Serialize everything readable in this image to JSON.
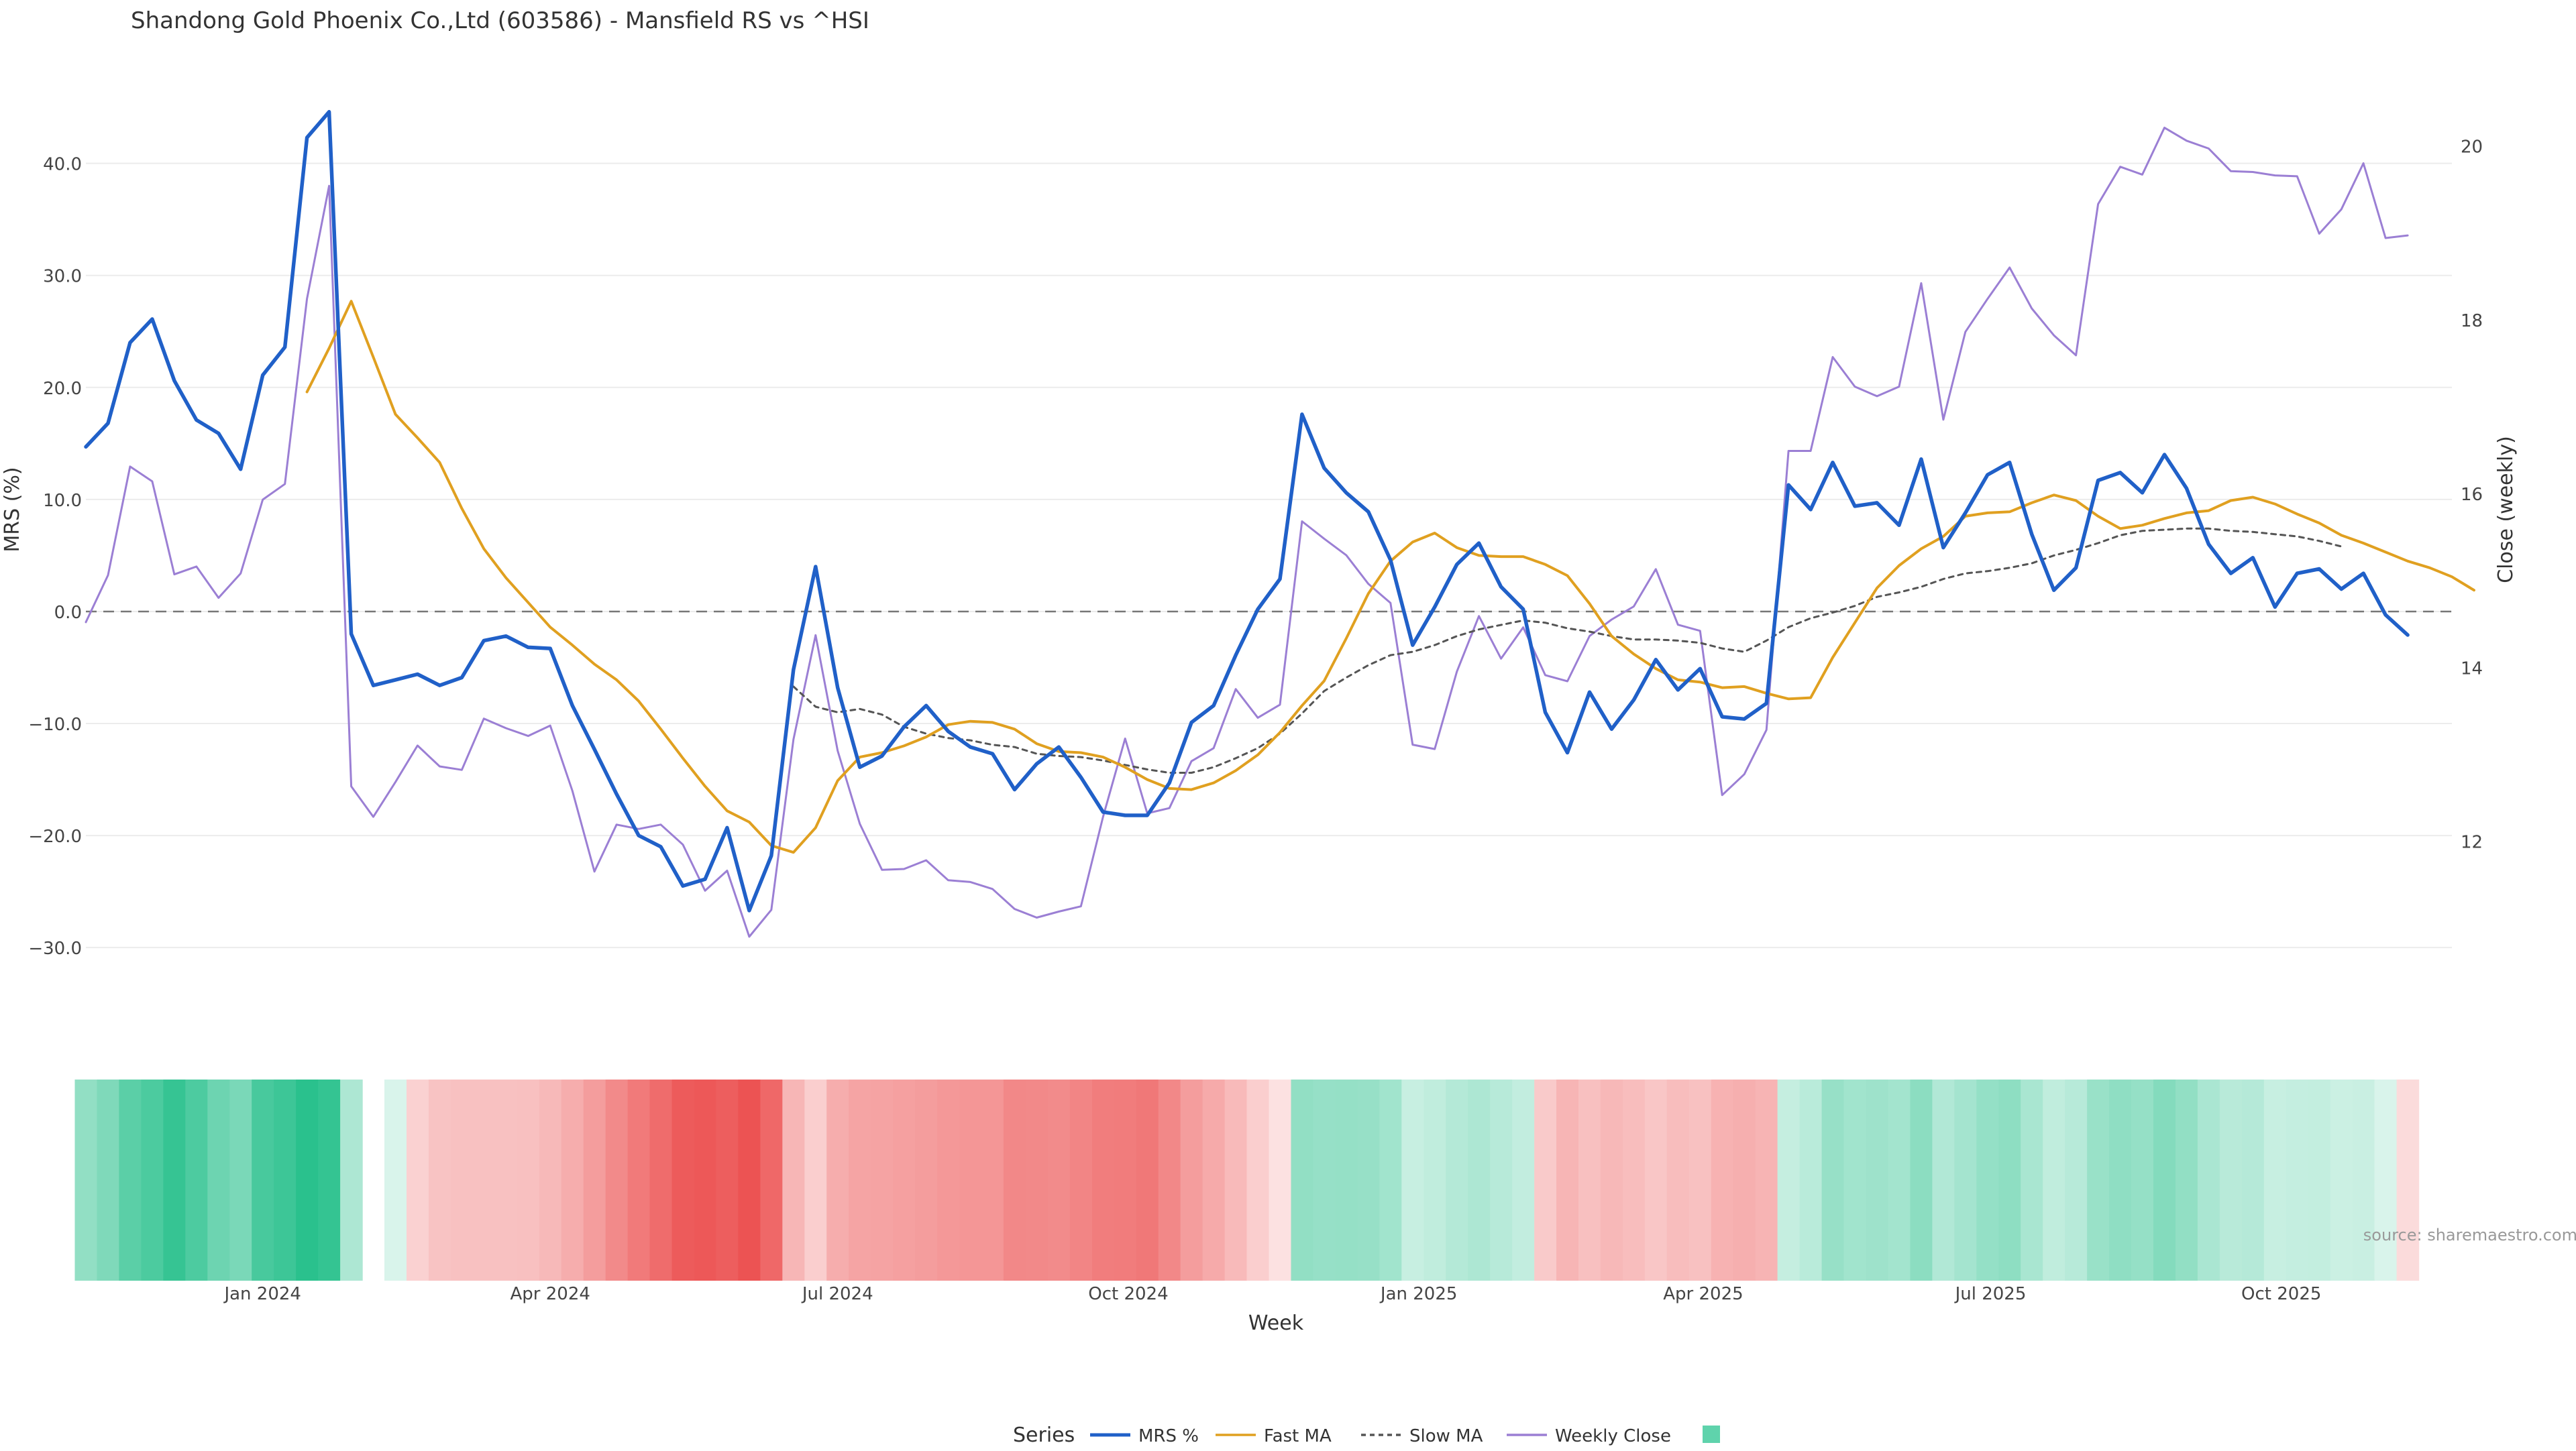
{
  "chart_data": {
    "type": "line",
    "title": "Shandong Gold Phoenix Co.,Ltd (603586) - Mansfield RS vs ^HSI",
    "xlabel": "Week",
    "ylabel_left": "MRS (%)",
    "ylabel_right": "Close (weekly)",
    "watermark": "source: sharemaestro.com",
    "left_axis": {
      "ylim": [
        -34,
        48
      ],
      "ticks": [
        40,
        30,
        20,
        10,
        0,
        -10,
        -20,
        -30
      ],
      "tick_labels": [
        "40.0",
        "30.0",
        "20.0",
        "10.0",
        "0.0",
        "−10.0",
        "−20.0",
        "−30.0"
      ]
    },
    "right_axis": {
      "ylim": [
        10.26,
        20.83
      ],
      "ticks": [
        12,
        14,
        16,
        18,
        20
      ],
      "tick_labels": [
        "12",
        "14",
        "16",
        "18",
        "20"
      ]
    },
    "x_range": [
      "2023-11-06",
      "2025-11-24"
    ],
    "x_ticks": [
      {
        "date": "2024-01-01",
        "label": "Jan 2024"
      },
      {
        "date": "2024-04-01",
        "label": "Apr 2024"
      },
      {
        "date": "2024-07-01",
        "label": "Jul 2024"
      },
      {
        "date": "2024-10-01",
        "label": "Oct 2024"
      },
      {
        "date": "2025-01-01",
        "label": "Jan 2025"
      },
      {
        "date": "2025-04-01",
        "label": "Apr 2025"
      },
      {
        "date": "2025-07-01",
        "label": "Jul 2025"
      },
      {
        "date": "2025-10-01",
        "label": "Oct 2025"
      }
    ],
    "zero_line": 0,
    "grid": true,
    "legend_title": "Series",
    "legend_position": "bottom-center",
    "series": [
      {
        "name": "MRS %",
        "color": "#2060c8",
        "axis": "left",
        "style": "solid",
        "start": "2023-11-06",
        "values": [
          14.7,
          16.8,
          24.0,
          26.1,
          20.6,
          17.1,
          15.9,
          12.7,
          21.1,
          23.6,
          42.3,
          44.6,
          -2.0,
          -6.6,
          -6.1,
          -5.6,
          -6.6,
          -5.9,
          -2.6,
          -2.2,
          -3.2,
          -3.3,
          -8.4,
          -12.3,
          -16.3,
          -20.0,
          -21.0,
          -24.5,
          -23.9,
          -19.3,
          -26.7,
          -21.8,
          -5.2,
          4.0,
          -6.8,
          -13.9,
          -12.9,
          -10.3,
          -8.4,
          -10.7,
          -12.1,
          -12.7,
          -15.9,
          -13.6,
          -12.1,
          -14.8,
          -17.9,
          -18.2,
          -18.2,
          -15.3,
          -9.9,
          -8.4,
          -3.9,
          0.2,
          2.9,
          17.6,
          12.8,
          10.6,
          8.9,
          4.6,
          -3.0,
          0.4,
          4.2,
          6.1,
          2.2,
          0.2,
          -9.0,
          -12.6,
          -7.2,
          -10.5,
          -7.9,
          -4.3,
          -7.0,
          -5.1,
          -9.4,
          -9.6,
          -8.2,
          11.3,
          9.1,
          13.3,
          9.4,
          9.7,
          7.7,
          13.6,
          5.7,
          8.8,
          12.2,
          13.3,
          6.9,
          1.9,
          3.9,
          11.7,
          12.4,
          10.6,
          14.0,
          11.0,
          6.0,
          3.4,
          4.8,
          0.4,
          3.4,
          3.8,
          2.0,
          3.4,
          -0.3,
          -2.1
        ]
      },
      {
        "name": "Fast MA",
        "color": "#e0a020",
        "axis": "left",
        "style": "solid",
        "start": "2024-01-15",
        "values": [
          19.6,
          23.5,
          27.7,
          22.7,
          17.6,
          15.5,
          13.3,
          9.2,
          5.6,
          3.0,
          0.8,
          -1.4,
          -3.0,
          -4.7,
          -6.1,
          -8.0,
          -10.5,
          -13.1,
          -15.6,
          -17.8,
          -18.8,
          -20.9,
          -21.5,
          -19.3,
          -15.1,
          -13.0,
          -12.6,
          -12.0,
          -11.2,
          -10.1,
          -9.8,
          -9.9,
          -10.5,
          -11.8,
          -12.5,
          -12.6,
          -13.0,
          -13.9,
          -15.0,
          -15.8,
          -15.9,
          -15.3,
          -14.2,
          -12.8,
          -10.8,
          -8.4,
          -6.2,
          -2.4,
          1.6,
          4.5,
          6.2,
          7.0,
          5.7,
          5.0,
          4.9,
          4.9,
          4.2,
          3.2,
          0.7,
          -2.2,
          -3.8,
          -5.1,
          -6.1,
          -6.3,
          -6.8,
          -6.7,
          -7.3,
          -7.8,
          -7.7,
          -4.1,
          -1.0,
          2.1,
          4.1,
          5.6,
          6.7,
          8.5,
          8.8,
          8.9,
          9.7,
          10.4,
          9.9,
          8.5,
          7.4,
          7.7,
          8.3,
          8.8,
          9.0,
          9.9,
          10.2,
          9.6,
          8.7,
          7.9,
          6.8,
          6.1,
          5.3,
          4.5,
          3.9,
          3.1,
          1.9
        ]
      },
      {
        "name": "Slow MA",
        "color": "#555555",
        "axis": "left",
        "style": "dashed",
        "start": "2024-06-17",
        "values": [
          -6.7,
          -8.5,
          -9.0,
          -8.7,
          -9.2,
          -10.3,
          -10.9,
          -11.3,
          -11.5,
          -11.9,
          -12.1,
          -12.7,
          -12.9,
          -13.0,
          -13.3,
          -13.7,
          -14.1,
          -14.4,
          -14.4,
          -13.9,
          -13.1,
          -12.2,
          -10.9,
          -9.1,
          -7.1,
          -5.9,
          -4.8,
          -3.9,
          -3.6,
          -3.0,
          -2.2,
          -1.6,
          -1.2,
          -0.8,
          -1.0,
          -1.5,
          -1.8,
          -2.2,
          -2.5,
          -2.5,
          -2.6,
          -2.8,
          -3.3,
          -3.6,
          -2.6,
          -1.4,
          -0.6,
          -0.1,
          0.5,
          1.3,
          1.7,
          2.2,
          2.9,
          3.4,
          3.6,
          3.9,
          4.3,
          5.0,
          5.5,
          6.1,
          6.8,
          7.2,
          7.3,
          7.4,
          7.4,
          7.2,
          7.1,
          6.9,
          6.7,
          6.3,
          5.8
        ]
      },
      {
        "name": "Weekly Close",
        "color": "#9b7fd4",
        "axis": "right",
        "style": "solid",
        "start": "2023-11-06",
        "values": [
          14.52,
          15.06,
          16.31,
          16.14,
          15.07,
          15.16,
          14.8,
          15.08,
          15.93,
          16.11,
          18.24,
          19.54,
          12.63,
          12.28,
          12.68,
          13.1,
          12.86,
          12.82,
          13.41,
          13.3,
          13.21,
          13.33,
          12.58,
          11.65,
          12.19,
          12.14,
          12.19,
          11.96,
          11.43,
          11.66,
          10.9,
          11.21,
          13.17,
          14.37,
          13.04,
          12.2,
          11.67,
          11.68,
          11.78,
          11.55,
          11.53,
          11.45,
          11.22,
          11.12,
          11.19,
          11.25,
          12.28,
          13.18,
          12.32,
          12.38,
          12.92,
          13.07,
          13.75,
          13.42,
          13.57,
          15.68,
          15.48,
          15.29,
          14.96,
          14.74,
          13.11,
          13.06,
          13.95,
          14.59,
          14.1,
          14.46,
          13.91,
          13.84,
          14.36,
          14.55,
          14.7,
          15.13,
          14.49,
          14.42,
          12.53,
          12.77,
          13.28,
          16.49,
          16.49,
          17.57,
          17.23,
          17.12,
          17.23,
          18.42,
          16.85,
          17.86,
          18.24,
          18.6,
          18.13,
          17.82,
          17.59,
          19.33,
          19.76,
          19.67,
          20.21,
          20.06,
          19.97,
          19.71,
          19.7,
          19.66,
          19.65,
          18.99,
          19.27,
          19.8,
          18.94,
          18.97
        ]
      }
    ],
    "heatmap_strip": {
      "start": "2023-11-06",
      "values": [
        8.4,
        10.3,
        13.9,
        15.4,
        17.6,
        15.3,
        12.1,
        10.8,
        15.8,
        16.9,
        18.8,
        17.8,
        5.6,
        null,
        1.2,
        -3.1,
        -4.8,
        -5.1,
        -5.1,
        -5.0,
        -5.2,
        -6.0,
        -7.5,
        -9.5,
        -11.9,
        -13.8,
        -15.5,
        -17.6,
        -18.0,
        -17.3,
        -18.6,
        -16.1,
        -6.4,
        -3.4,
        -7.5,
        -8.6,
        -8.7,
        -9.1,
        -9.5,
        -10.1,
        -10.4,
        -10.4,
        -12.1,
        -12.0,
        -11.7,
        -12.4,
        -13.4,
        -13.6,
        -14.1,
        -12.1,
        -9.5,
        -7.9,
        -5.9,
        -3.4,
        -1.1,
        8.4,
        8.0,
        8.1,
        7.9,
        6.8,
        3.0,
        3.7,
        4.9,
        5.6,
        4.6,
        3.5,
        -4.0,
        -6.6,
        -5.2,
        -6.2,
        -5.6,
        -4.4,
        -5.5,
        -5.0,
        -6.9,
        -7.3,
        -6.7,
        3.2,
        4.4,
        7.9,
        6.8,
        7.2,
        6.6,
        9.0,
        5.2,
        6.5,
        8.2,
        8.8,
        6.0,
        3.7,
        4.6,
        7.7,
        8.7,
        8.1,
        9.8,
        8.4,
        5.9,
        4.5,
        4.8,
        3.0,
        3.3,
        3.4,
        2.6,
        2.8,
        1.2,
        -1.8
      ]
    }
  }
}
